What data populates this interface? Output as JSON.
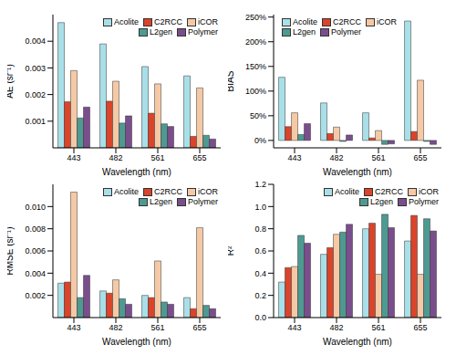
{
  "chart_data": [
    {
      "type": "bar",
      "y_label": "AE (sr⁻¹)",
      "x_label": "Wavelength (nm)",
      "categories": [
        "443",
        "482",
        "561",
        "655"
      ],
      "ylim": [
        0,
        0.005
      ],
      "yticks": [
        0.001,
        0.002,
        0.003,
        0.004
      ],
      "legend": "upper right",
      "series": [
        {
          "name": "Acolite",
          "color": "#a9dfe8",
          "values": [
            0.0047,
            0.0039,
            0.00305,
            0.0027
          ]
        },
        {
          "name": "C2RCC",
          "color": "#d9442b",
          "values": [
            0.00173,
            0.00175,
            0.0013,
            0.00043
          ]
        },
        {
          "name": "iCOR",
          "color": "#f6c9a6",
          "values": [
            0.0029,
            0.0025,
            0.0024,
            0.00225
          ]
        },
        {
          "name": "L2gen",
          "color": "#4e9a92",
          "values": [
            0.00112,
            0.00093,
            0.0009,
            0.00047
          ]
        },
        {
          "name": "Polymer",
          "color": "#7a4e8c",
          "values": [
            0.00153,
            0.0012,
            0.0008,
            0.00033
          ]
        }
      ]
    },
    {
      "type": "bar",
      "y_label": "BIAS",
      "x_label": "Wavelength (nm)",
      "categories": [
        "443",
        "482",
        "561",
        "655"
      ],
      "ylim": [
        -15,
        255
      ],
      "yticks": [
        {
          "value": 0,
          "label": "0%"
        },
        {
          "value": 50,
          "label": "50%"
        },
        {
          "value": 100,
          "label": "100%"
        },
        {
          "value": 150,
          "label": "150%"
        },
        {
          "value": 200,
          "label": "200%"
        },
        {
          "value": 250,
          "label": "250%"
        }
      ],
      "legend": "upper left",
      "series": [
        {
          "name": "Acolite",
          "color": "#a9dfe8",
          "values": [
            128,
            76,
            56,
            242
          ]
        },
        {
          "name": "C2RCC",
          "color": "#d9442b",
          "values": [
            28,
            14,
            5,
            18
          ]
        },
        {
          "name": "iCOR",
          "color": "#f6c9a6",
          "values": [
            56,
            27,
            20,
            122
          ]
        },
        {
          "name": "L2gen",
          "color": "#4e9a92",
          "values": [
            12,
            -2,
            -8,
            -2
          ]
        },
        {
          "name": "Polymer",
          "color": "#7a4e8c",
          "values": [
            34,
            11,
            -7,
            -8
          ]
        }
      ]
    },
    {
      "type": "bar",
      "y_label": "RMSE (sr⁻¹)",
      "x_label": "Wavelength (nm)",
      "categories": [
        "443",
        "482",
        "561",
        "655"
      ],
      "ylim": [
        0,
        0.012
      ],
      "yticks": [
        0.002,
        0.004,
        0.006,
        0.008,
        {
          "value": 0.01,
          "label": "0.010"
        }
      ],
      "legend": "upper right",
      "series": [
        {
          "name": "Acolite",
          "color": "#a9dfe8",
          "values": [
            0.0031,
            0.0024,
            0.002,
            0.0018
          ]
        },
        {
          "name": "C2RCC",
          "color": "#d9442b",
          "values": [
            0.0032,
            0.0022,
            0.0018,
            0.0008
          ]
        },
        {
          "name": "iCOR",
          "color": "#f6c9a6",
          "values": [
            0.0113,
            0.0034,
            0.0051,
            0.0081
          ]
        },
        {
          "name": "L2gen",
          "color": "#4e9a92",
          "values": [
            0.0018,
            0.0017,
            0.0014,
            0.0011
          ]
        },
        {
          "name": "Polymer",
          "color": "#7a4e8c",
          "values": [
            0.0038,
            0.0012,
            0.0012,
            0.0008
          ]
        }
      ]
    },
    {
      "type": "bar",
      "y_label": "R²",
      "x_label": "Wavelength (nm)",
      "categories": [
        "443",
        "482",
        "561",
        "655"
      ],
      "ylim": [
        0,
        1.2
      ],
      "yticks": [
        {
          "value": 0,
          "label": "0.0"
        },
        0.2,
        0.4,
        0.6,
        0.8,
        {
          "value": 1,
          "label": "1.0"
        },
        1.2
      ],
      "legend": "upper right",
      "series": [
        {
          "name": "Acolite",
          "color": "#a9dfe8",
          "values": [
            0.32,
            0.57,
            0.8,
            0.69
          ]
        },
        {
          "name": "C2RCC",
          "color": "#d9442b",
          "values": [
            0.45,
            0.63,
            0.85,
            0.92
          ]
        },
        {
          "name": "iCOR",
          "color": "#f6c9a6",
          "values": [
            0.46,
            0.75,
            0.39,
            0.39
          ]
        },
        {
          "name": "L2gen",
          "color": "#4e9a92",
          "values": [
            0.74,
            0.77,
            0.93,
            0.89
          ]
        },
        {
          "name": "Polymer",
          "color": "#7a4e8c",
          "values": [
            0.67,
            0.84,
            0.81,
            0.78
          ]
        }
      ]
    }
  ]
}
